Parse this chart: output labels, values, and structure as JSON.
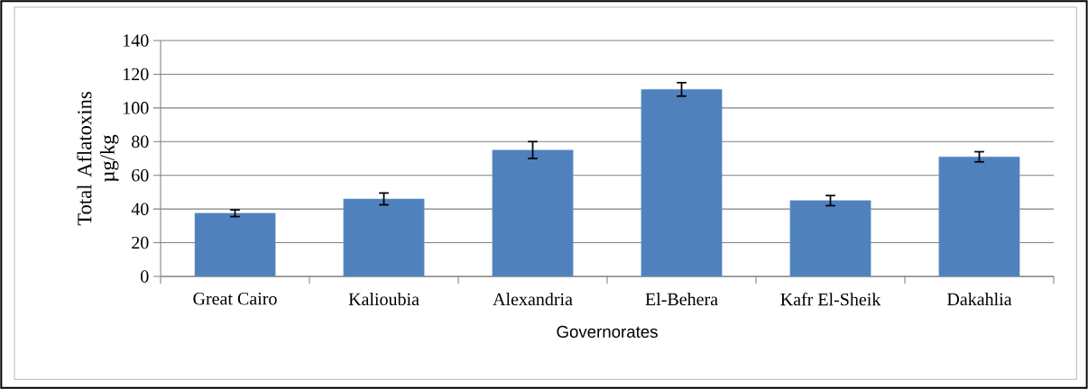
{
  "chart_data": {
    "type": "bar",
    "xlabel": "Governorates",
    "ylabel": "Total Aflatoxins µg/kg",
    "categories": [
      "Great Cairo",
      "Kalioubia",
      "Alexandria",
      "El-Behera",
      "Kafr El-Sheik",
      "Dakahlia"
    ],
    "values": [
      37.5,
      46,
      75,
      111,
      45,
      71
    ],
    "errors": [
      2,
      3.5,
      5,
      4,
      3,
      3
    ],
    "color": "#4f81bd",
    "ylim": [
      0,
      140
    ],
    "yticks": [
      0,
      20,
      40,
      60,
      80,
      100,
      120,
      140
    ],
    "grid": "y"
  }
}
